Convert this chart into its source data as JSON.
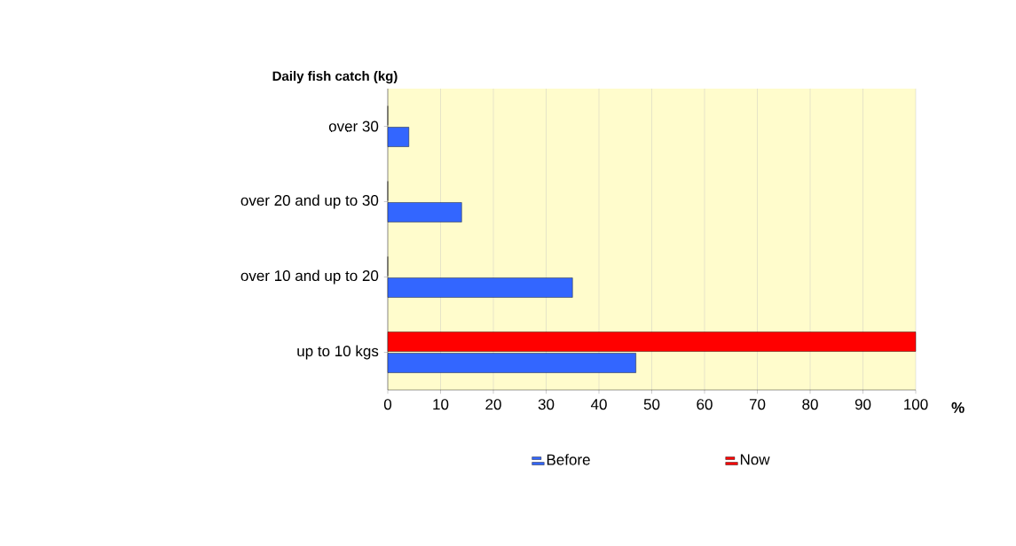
{
  "chart_data": {
    "type": "bar",
    "orientation": "horizontal",
    "ylabel": "Daily fish catch (kg)",
    "xlabel": "%",
    "categories": [
      "over 30",
      "over 20 and up to 30",
      "over 10 and up to 20",
      "up to 10 kgs"
    ],
    "series": [
      {
        "name": "Before",
        "color": "#3366ff",
        "values": [
          4,
          14,
          35,
          47
        ]
      },
      {
        "name": "Now",
        "color": "#ff0000",
        "values": [
          0,
          0,
          0,
          100
        ]
      }
    ],
    "xlim": [
      0,
      100
    ],
    "xticks": [
      0,
      10,
      20,
      30,
      40,
      50,
      60,
      70,
      80,
      90,
      100
    ],
    "grid": "x",
    "legend": "bottom"
  }
}
